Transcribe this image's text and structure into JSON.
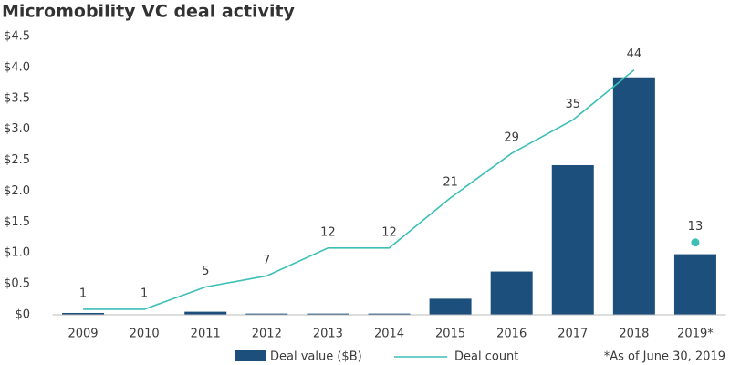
{
  "chart_data": {
    "type": "bar_line",
    "title": "Micromobility VC deal activity",
    "annotation": "*As of June 30, 2019",
    "categories": [
      "2009",
      "2010",
      "2011",
      "2012",
      "2013",
      "2014",
      "2015",
      "2016",
      "2017",
      "2018",
      "2019*"
    ],
    "series": [
      {
        "name": "Deal value ($B)",
        "type": "bar",
        "color": "#1d4f7c",
        "values": [
          0.03,
          0.0,
          0.05,
          0.02,
          0.02,
          0.02,
          0.26,
          0.7,
          2.42,
          3.84,
          0.98
        ]
      },
      {
        "name": "Deal count",
        "type": "line",
        "axis": "y2",
        "color": "#3dbfb6",
        "values": [
          1,
          1,
          5,
          7,
          12,
          12,
          21,
          29,
          35,
          44,
          13
        ]
      }
    ],
    "ylim": [
      0,
      4.5
    ],
    "yticks": [
      {
        "value": 0,
        "label": "$0"
      },
      {
        "value": 0.5,
        "label": "$0.5"
      },
      {
        "value": 1,
        "label": "$1.0"
      },
      {
        "value": 1.5,
        "label": "$1.5"
      },
      {
        "value": 2,
        "label": "$2.0"
      },
      {
        "value": 2.5,
        "label": "$2.5"
      },
      {
        "value": 3,
        "label": "$3.0"
      },
      {
        "value": 3.5,
        "label": "$3.5"
      },
      {
        "value": 4,
        "label": "$4.0"
      },
      {
        "value": 4.5,
        "label": "$4.5"
      }
    ],
    "y2lim": [
      0,
      50
    ],
    "grid": false,
    "legend": "bottom"
  }
}
